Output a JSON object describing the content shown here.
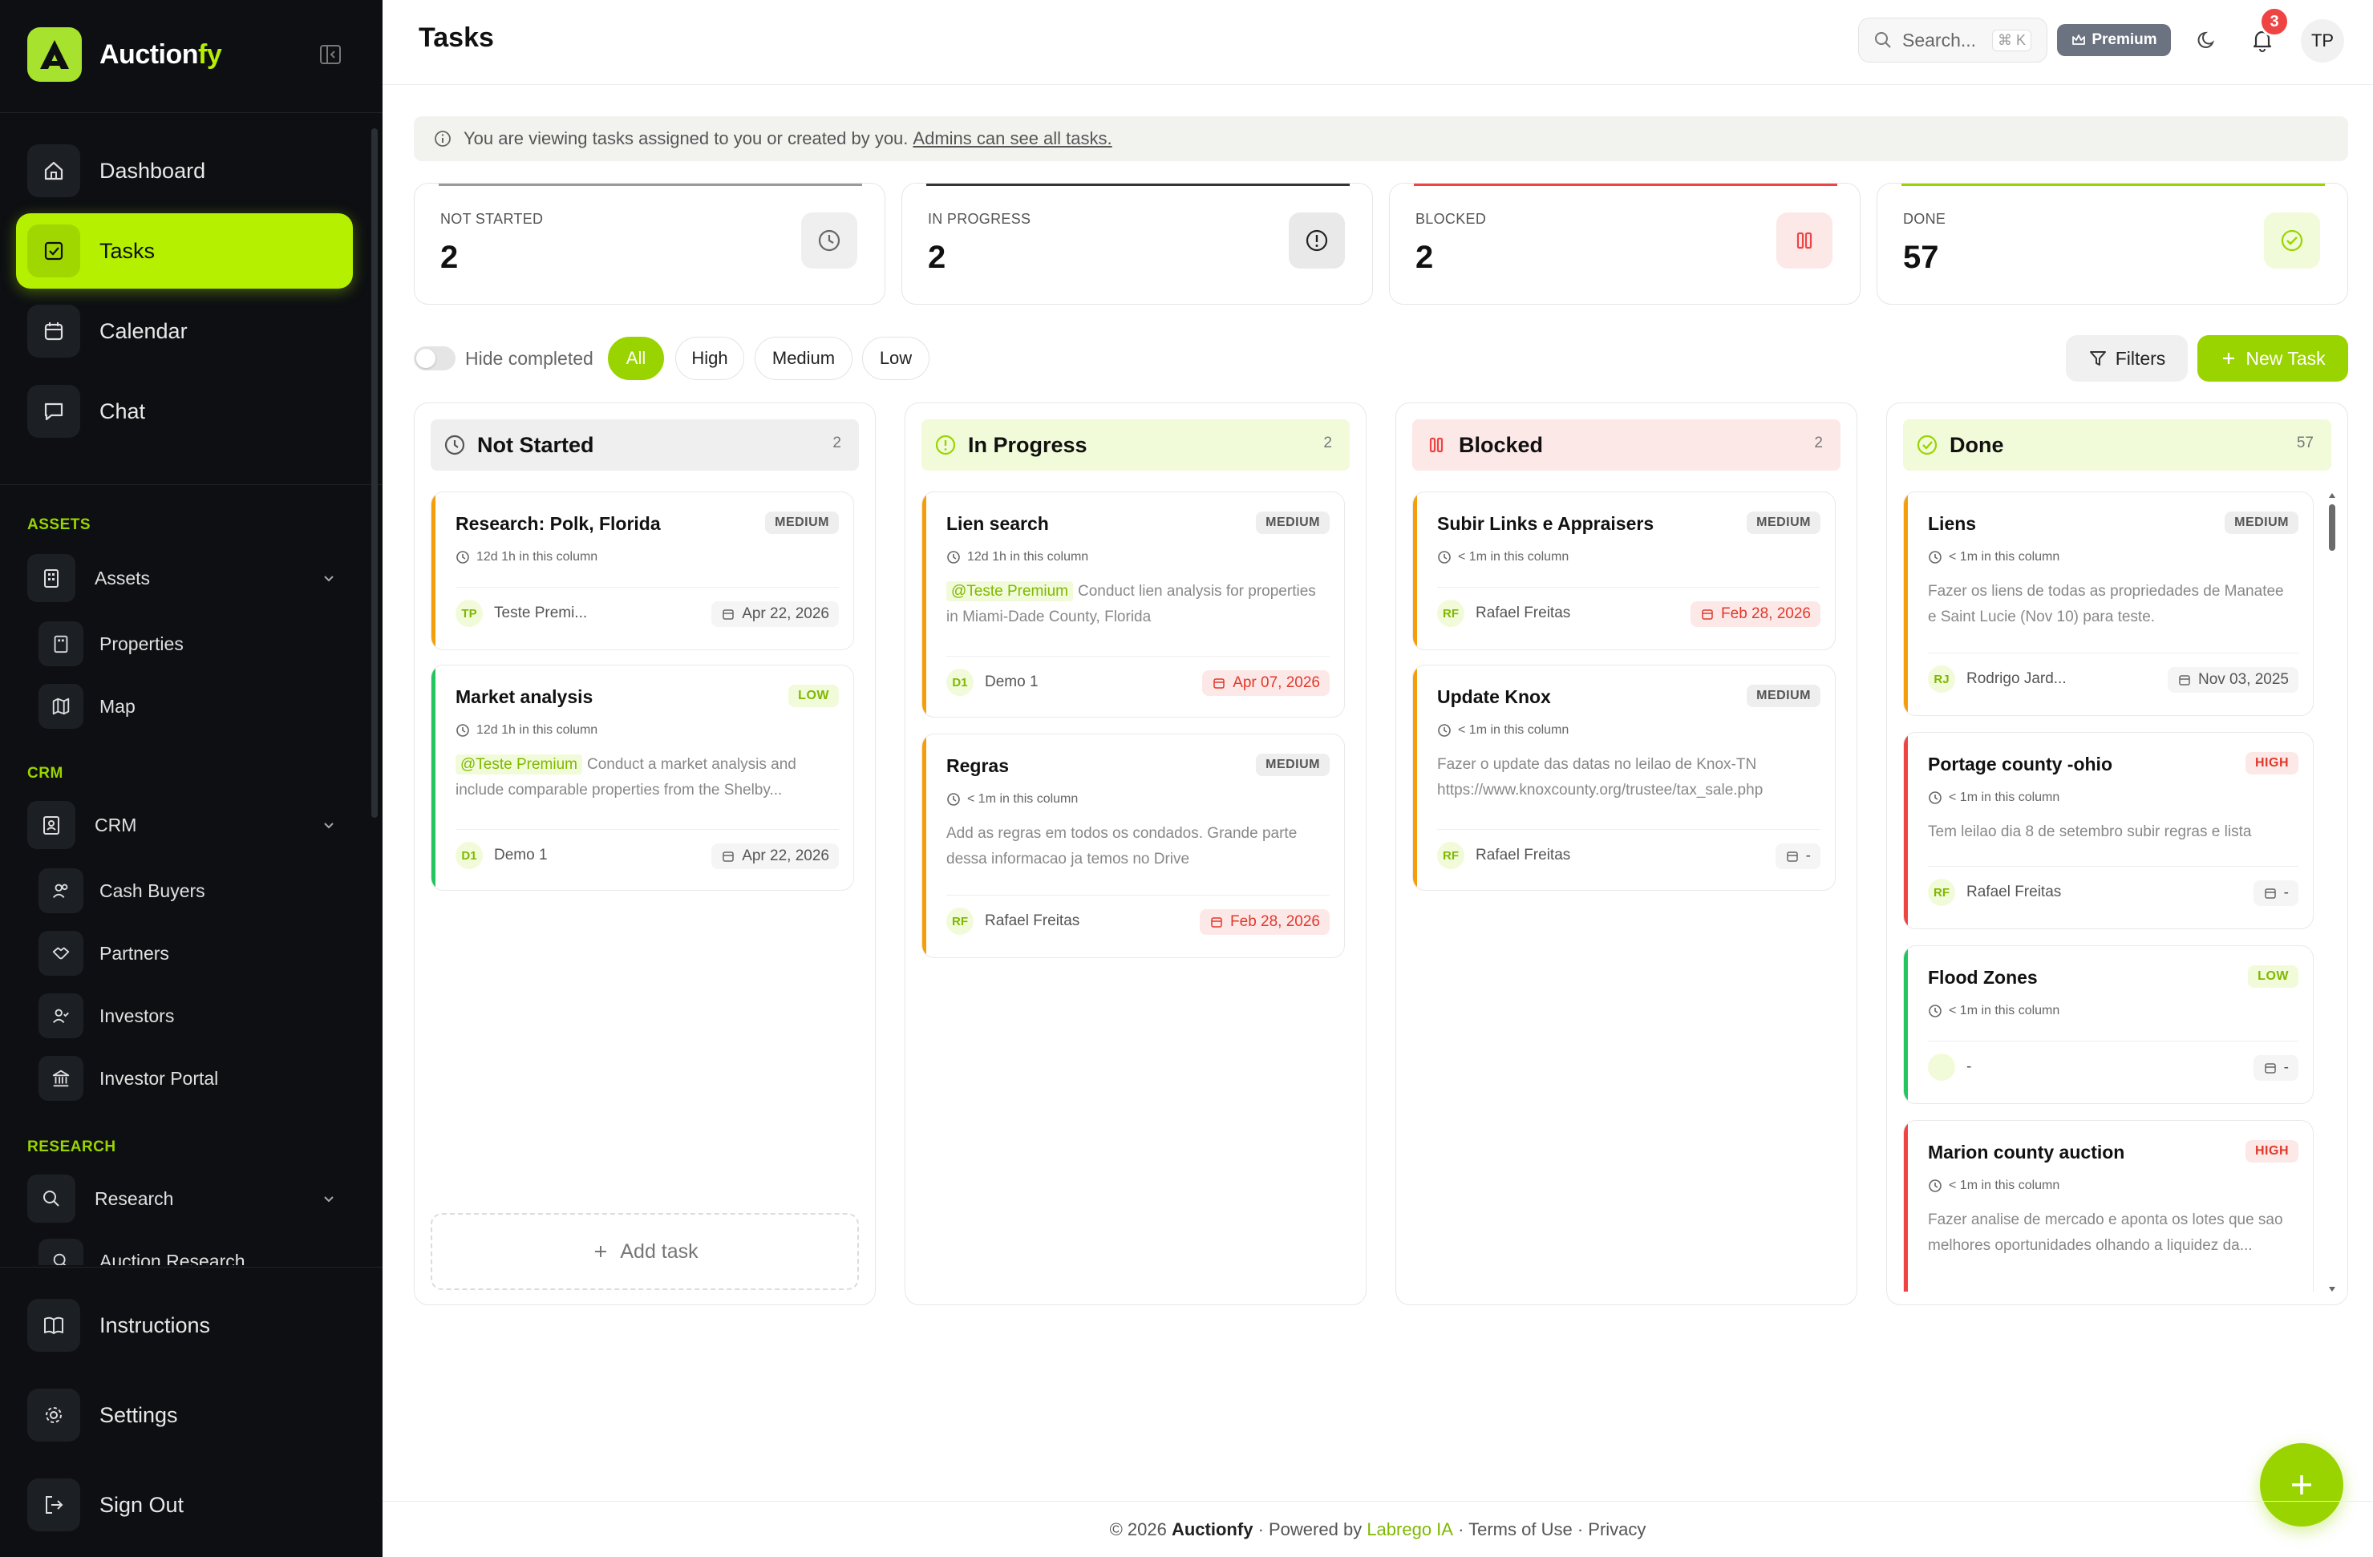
{
  "brand": {
    "name_main": "Auction",
    "name_accent": "fy"
  },
  "sidebar": {
    "nav": [
      {
        "label": "Dashboard",
        "icon": "home-icon"
      },
      {
        "label": "Tasks",
        "icon": "check-square-icon",
        "active": true
      },
      {
        "label": "Calendar",
        "icon": "calendar-icon"
      },
      {
        "label": "Chat",
        "icon": "chat-icon"
      }
    ],
    "sections": {
      "assets": "ASSETS",
      "crm": "CRM",
      "research": "RESEARCH"
    },
    "assets_group": {
      "label": "Assets",
      "items": [
        "Properties",
        "Map"
      ]
    },
    "crm_group": {
      "label": "CRM",
      "items": [
        "Cash Buyers",
        "Partners",
        "Investors",
        "Investor Portal"
      ]
    },
    "research_group": {
      "label": "Research",
      "items": [
        "Auction Research"
      ]
    },
    "bottom": [
      "Instructions",
      "Settings",
      "Sign Out"
    ]
  },
  "header": {
    "title": "Tasks",
    "search_placeholder": "Search...",
    "search_shortcut": "⌘ K",
    "premium_label": "Premium",
    "notifications_count": "3",
    "user_initials": "TP"
  },
  "infobar": {
    "text": "You are viewing tasks assigned to you or created by you.",
    "link": "Admins can see all tasks."
  },
  "stats": [
    {
      "label": "NOT STARTED",
      "value": "2",
      "color": "#9a9a9a"
    },
    {
      "label": "IN PROGRESS",
      "value": "2",
      "color": "#333333"
    },
    {
      "label": "BLOCKED",
      "value": "2",
      "color": "#ef4444"
    },
    {
      "label": "DONE",
      "value": "57",
      "color": "#9ad400"
    }
  ],
  "filters": {
    "hide_completed": "Hide completed",
    "chips": [
      "All",
      "High",
      "Medium",
      "Low"
    ],
    "active_chip": "All",
    "filters_label": "Filters",
    "new_task_label": "New Task"
  },
  "columns": [
    {
      "title": "Not Started",
      "count": "2",
      "cards": [
        {
          "title": "Research: Polk, Florida",
          "priority": "MEDIUM",
          "time": "12d 1h in this column",
          "desc_mention": "",
          "desc": "",
          "assignee_initials": "TP",
          "assignee": "Teste Premi...",
          "due": "Apr 22, 2026",
          "due_red": false
        },
        {
          "title": "Market analysis",
          "priority": "LOW",
          "time": "12d 1h in this column",
          "desc_mention": "@Teste Premium",
          "desc": "Conduct a market analysis and include comparable properties from the Shelby...",
          "assignee_initials": "D1",
          "assignee": "Demo 1",
          "due": "Apr 22, 2026",
          "due_red": false
        }
      ],
      "add_task": "Add task"
    },
    {
      "title": "In Progress",
      "count": "2",
      "cards": [
        {
          "title": "Lien search",
          "priority": "MEDIUM",
          "time": "12d 1h in this column",
          "desc_mention": "@Teste Premium",
          "desc": "Conduct lien analysis for properties in Miami-Dade County, Florida",
          "assignee_initials": "D1",
          "assignee": "Demo 1",
          "due": "Apr 07, 2026",
          "due_red": true
        },
        {
          "title": "Regras",
          "priority": "MEDIUM",
          "time": "< 1m in this column",
          "desc_mention": "",
          "desc": "Add as regras em todos os condados. Grande parte dessa informacao ja temos no Drive",
          "assignee_initials": "RF",
          "assignee": "Rafael Freitas",
          "due": "Feb 28, 2026",
          "due_red": true
        }
      ]
    },
    {
      "title": "Blocked",
      "count": "2",
      "cards": [
        {
          "title": "Subir Links e Appraisers",
          "priority": "MEDIUM",
          "time": "< 1m in this column",
          "desc_mention": "",
          "desc": "",
          "assignee_initials": "RF",
          "assignee": "Rafael Freitas",
          "due": "Feb 28, 2026",
          "due_red": true
        },
        {
          "title": "Update Knox",
          "priority": "MEDIUM",
          "time": "< 1m in this column",
          "desc_mention": "",
          "desc": "Fazer o update das datas no leilao de Knox-TN https://www.knoxcounty.org/trustee/tax_sale.php",
          "assignee_initials": "RF",
          "assignee": "Rafael Freitas",
          "due": "-",
          "due_red": false
        }
      ]
    },
    {
      "title": "Done",
      "count": "57",
      "cards": [
        {
          "title": "Liens",
          "priority": "MEDIUM",
          "time": "< 1m in this column",
          "desc_mention": "",
          "desc": "Fazer os liens de todas as propriedades de Manatee e Saint Lucie (Nov 10) para teste.",
          "assignee_initials": "RJ",
          "assignee": "Rodrigo Jard...",
          "due": "Nov 03, 2025",
          "due_red": false
        },
        {
          "title": "Portage county -ohio",
          "priority": "HIGH",
          "time": "< 1m in this column",
          "desc_mention": "",
          "desc": "Tem leilao dia 8 de setembro subir regras e lista",
          "assignee_initials": "RF",
          "assignee": "Rafael Freitas",
          "due": "-",
          "due_red": false
        },
        {
          "title": "Flood Zones",
          "priority": "LOW",
          "time": "< 1m in this column",
          "desc_mention": "",
          "desc": "",
          "assignee_initials": "",
          "assignee": "-",
          "due": "-",
          "due_red": false
        },
        {
          "title": "Marion county auction",
          "priority": "HIGH",
          "time": "< 1m in this column",
          "desc_mention": "",
          "desc": "Fazer analise de mercado e aponta os lotes que sao melhores oportunidades olhando a liquidez da...",
          "assignee_initials": "",
          "assignee": "",
          "due": "",
          "due_red": false
        }
      ]
    }
  ],
  "footer": {
    "copyright": "© 2026",
    "brand": "Auctionfy",
    "powered": "· Powered by",
    "powered_by": "Labrego IA",
    "terms": "· Terms of Use",
    "privacy": "· Privacy"
  },
  "colors": {
    "accent": "#b4f000",
    "accent_dark": "#9ad400",
    "sidebar_bg": "#0d0f12",
    "orange": "#f59e0b",
    "green": "#22c55e",
    "red": "#ef4444"
  }
}
